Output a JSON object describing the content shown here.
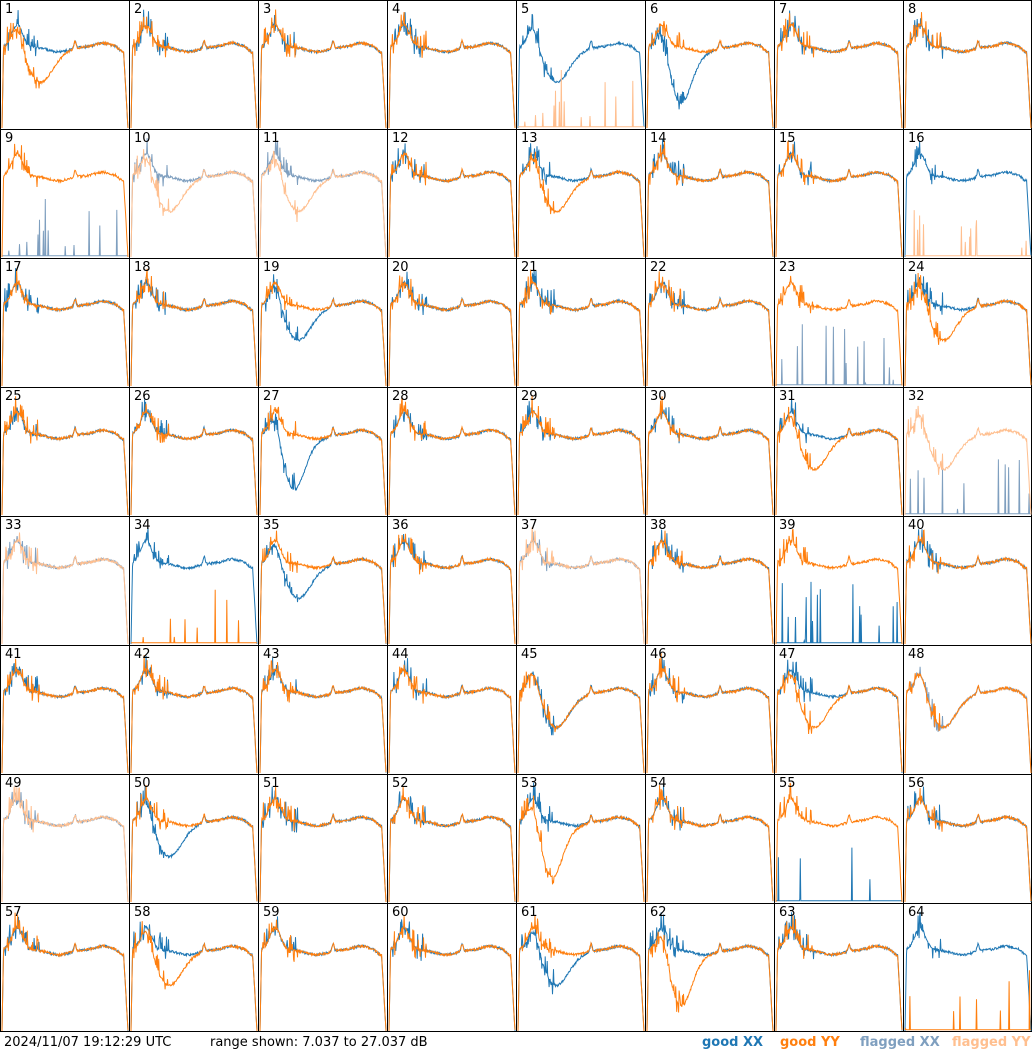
{
  "footer": {
    "timestamp": "2024/11/07 19:12:29 UTC",
    "range_text": "range shown: 7.037 to 27.037 dB"
  },
  "legend": [
    {
      "label": "good XX",
      "color": "#1f77b4"
    },
    {
      "label": "good YY",
      "color": "#ff7f0e"
    },
    {
      "label": "flagged XX",
      "color": "#7f9fbf"
    },
    {
      "label": "flagged YY",
      "color": "#ffbf8f"
    }
  ],
  "chart_data": {
    "type": "line",
    "y_range_db": [
      7.037,
      27.037
    ],
    "grid": false,
    "layout": "8x8 small multiples",
    "series_names": [
      "good XX",
      "good YY",
      "flagged XX",
      "flagged YY"
    ],
    "panels": [
      {
        "id": "1",
        "xx": "normal",
        "yy": "dip",
        "xx_flag": false,
        "yy_flag": false
      },
      {
        "id": "2",
        "xx": "normal",
        "yy": "normal",
        "xx_flag": false,
        "yy_flag": false
      },
      {
        "id": "3",
        "xx": "normal",
        "yy": "normal",
        "xx_flag": false,
        "yy_flag": false
      },
      {
        "id": "4",
        "xx": "normal",
        "yy": "normal",
        "xx_flag": false,
        "yy_flag": false
      },
      {
        "id": "5",
        "xx": "dip",
        "yy": "dead",
        "xx_flag": false,
        "yy_flag": true
      },
      {
        "id": "6",
        "xx": "deepdip",
        "yy": "normal",
        "xx_flag": false,
        "yy_flag": false
      },
      {
        "id": "7",
        "xx": "normal",
        "yy": "normal",
        "xx_flag": false,
        "yy_flag": false
      },
      {
        "id": "8",
        "xx": "normal",
        "yy": "normal",
        "xx_flag": false,
        "yy_flag": false
      },
      {
        "id": "9",
        "xx": "dead",
        "yy": "normal",
        "xx_flag": true,
        "yy_flag": false
      },
      {
        "id": "10",
        "xx": "normal",
        "yy": "dip",
        "xx_flag": true,
        "yy_flag": true
      },
      {
        "id": "11",
        "xx": "normal",
        "yy": "dip",
        "xx_flag": true,
        "yy_flag": true
      },
      {
        "id": "12",
        "xx": "normal",
        "yy": "normal",
        "xx_flag": false,
        "yy_flag": false
      },
      {
        "id": "13",
        "xx": "normal",
        "yy": "dip",
        "xx_flag": false,
        "yy_flag": false
      },
      {
        "id": "14",
        "xx": "normal",
        "yy": "normal",
        "xx_flag": false,
        "yy_flag": false
      },
      {
        "id": "15",
        "xx": "normal",
        "yy": "normal",
        "xx_flag": false,
        "yy_flag": false
      },
      {
        "id": "16",
        "xx": "normal",
        "yy": "dead",
        "xx_flag": false,
        "yy_flag": true
      },
      {
        "id": "17",
        "xx": "normal",
        "yy": "normal",
        "xx_flag": false,
        "yy_flag": false
      },
      {
        "id": "18",
        "xx": "normal",
        "yy": "normal",
        "xx_flag": false,
        "yy_flag": false
      },
      {
        "id": "19",
        "xx": "dip",
        "yy": "normal",
        "xx_flag": false,
        "yy_flag": false
      },
      {
        "id": "20",
        "xx": "normal",
        "yy": "normal",
        "xx_flag": false,
        "yy_flag": false
      },
      {
        "id": "21",
        "xx": "normal",
        "yy": "normal",
        "xx_flag": false,
        "yy_flag": false
      },
      {
        "id": "22",
        "xx": "normal",
        "yy": "normal",
        "xx_flag": false,
        "yy_flag": false
      },
      {
        "id": "23",
        "xx": "dead",
        "yy": "normal",
        "xx_flag": true,
        "yy_flag": false
      },
      {
        "id": "24",
        "xx": "normal",
        "yy": "dip",
        "xx_flag": false,
        "yy_flag": false
      },
      {
        "id": "25",
        "xx": "normal",
        "yy": "normal",
        "xx_flag": false,
        "yy_flag": false
      },
      {
        "id": "26",
        "xx": "normal",
        "yy": "normal",
        "xx_flag": false,
        "yy_flag": false
      },
      {
        "id": "27",
        "xx": "deepdip",
        "yy": "normal",
        "xx_flag": false,
        "yy_flag": false
      },
      {
        "id": "28",
        "xx": "normal",
        "yy": "normal",
        "xx_flag": false,
        "yy_flag": false
      },
      {
        "id": "29",
        "xx": "normal",
        "yy": "normal",
        "xx_flag": false,
        "yy_flag": false
      },
      {
        "id": "30",
        "xx": "normal",
        "yy": "normal",
        "xx_flag": false,
        "yy_flag": false
      },
      {
        "id": "31",
        "xx": "normal",
        "yy": "dip",
        "xx_flag": false,
        "yy_flag": false
      },
      {
        "id": "32",
        "xx": "dead",
        "yy": "dip",
        "xx_flag": true,
        "yy_flag": true
      },
      {
        "id": "33",
        "xx": "normal",
        "yy": "normal",
        "xx_flag": true,
        "yy_flag": true
      },
      {
        "id": "34",
        "xx": "normal",
        "yy": "dead",
        "xx_flag": false,
        "yy_flag": false
      },
      {
        "id": "35",
        "xx": "dip",
        "yy": "normal",
        "xx_flag": false,
        "yy_flag": false
      },
      {
        "id": "36",
        "xx": "normal",
        "yy": "normal",
        "xx_flag": false,
        "yy_flag": false
      },
      {
        "id": "37",
        "xx": "normal",
        "yy": "normal",
        "xx_flag": true,
        "yy_flag": true
      },
      {
        "id": "38",
        "xx": "normal",
        "yy": "normal",
        "xx_flag": false,
        "yy_flag": false
      },
      {
        "id": "39",
        "xx": "dead",
        "yy": "normal",
        "xx_flag": false,
        "yy_flag": false
      },
      {
        "id": "40",
        "xx": "normal",
        "yy": "normal",
        "xx_flag": false,
        "yy_flag": false
      },
      {
        "id": "41",
        "xx": "normal",
        "yy": "normal",
        "xx_flag": false,
        "yy_flag": false
      },
      {
        "id": "42",
        "xx": "normal",
        "yy": "normal",
        "xx_flag": false,
        "yy_flag": false
      },
      {
        "id": "43",
        "xx": "normal",
        "yy": "normal",
        "xx_flag": false,
        "yy_flag": false
      },
      {
        "id": "44",
        "xx": "normal",
        "yy": "normal",
        "xx_flag": false,
        "yy_flag": false
      },
      {
        "id": "45",
        "xx": "dip",
        "yy": "dip",
        "xx_flag": false,
        "yy_flag": false
      },
      {
        "id": "46",
        "xx": "normal",
        "yy": "normal",
        "xx_flag": false,
        "yy_flag": false
      },
      {
        "id": "47",
        "xx": "normal",
        "yy": "dip",
        "xx_flag": false,
        "yy_flag": false
      },
      {
        "id": "48",
        "xx": "dip",
        "yy": "dip",
        "xx_flag": true,
        "yy_flag": false
      },
      {
        "id": "49",
        "xx": "normal",
        "yy": "normal",
        "xx_flag": true,
        "yy_flag": true
      },
      {
        "id": "50",
        "xx": "dip",
        "yy": "normal",
        "xx_flag": false,
        "yy_flag": false
      },
      {
        "id": "51",
        "xx": "normal",
        "yy": "normal",
        "xx_flag": false,
        "yy_flag": false
      },
      {
        "id": "52",
        "xx": "normal",
        "yy": "normal",
        "xx_flag": false,
        "yy_flag": false
      },
      {
        "id": "53",
        "xx": "normal",
        "yy": "deepdip",
        "xx_flag": false,
        "yy_flag": false
      },
      {
        "id": "54",
        "xx": "normal",
        "yy": "normal",
        "xx_flag": false,
        "yy_flag": false
      },
      {
        "id": "55",
        "xx": "dead",
        "yy": "normal",
        "xx_flag": false,
        "yy_flag": false
      },
      {
        "id": "56",
        "xx": "normal",
        "yy": "normal",
        "xx_flag": false,
        "yy_flag": false
      },
      {
        "id": "57",
        "xx": "normal",
        "yy": "normal",
        "xx_flag": false,
        "yy_flag": false
      },
      {
        "id": "58",
        "xx": "normal",
        "yy": "dip",
        "xx_flag": false,
        "yy_flag": false
      },
      {
        "id": "59",
        "xx": "normal",
        "yy": "normal",
        "xx_flag": false,
        "yy_flag": false
      },
      {
        "id": "60",
        "xx": "normal",
        "yy": "normal",
        "xx_flag": false,
        "yy_flag": false
      },
      {
        "id": "61",
        "xx": "dip",
        "yy": "normal",
        "xx_flag": false,
        "yy_flag": false
      },
      {
        "id": "62",
        "xx": "normal",
        "yy": "deepdip",
        "xx_flag": false,
        "yy_flag": false
      },
      {
        "id": "63",
        "xx": "normal",
        "yy": "normal",
        "xx_flag": false,
        "yy_flag": false
      },
      {
        "id": "64",
        "xx": "normal",
        "yy": "dead",
        "xx_flag": false,
        "yy_flag": false
      }
    ]
  }
}
